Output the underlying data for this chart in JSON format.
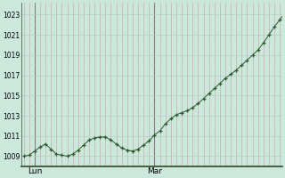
{
  "background_color": "#cce8dd",
  "line_color": "#2d5a2d",
  "marker_color": "#2d5a2d",
  "grid_color_major": "#b8ccc0",
  "grid_color_minor": "#d0ddd8",
  "grid_color_vert": "#c8a0a0",
  "yticks": [
    1009,
    1011,
    1013,
    1015,
    1017,
    1019,
    1021,
    1023
  ],
  "ylim": [
    1008.0,
    1024.2
  ],
  "xlim": [
    -0.5,
    47.5
  ],
  "xtick_labels": [
    "Lun",
    "Mar"
  ],
  "xtick_positions": [
    2,
    24
  ],
  "y_values": [
    1009.0,
    1009.1,
    1009.5,
    1009.9,
    1010.2,
    1009.7,
    1009.2,
    1009.1,
    1009.0,
    1009.2,
    1009.6,
    1010.1,
    1010.6,
    1010.8,
    1010.9,
    1010.9,
    1010.6,
    1010.2,
    1009.8,
    1009.6,
    1009.5,
    1009.7,
    1010.1,
    1010.5,
    1011.1,
    1011.5,
    1012.2,
    1012.7,
    1013.1,
    1013.3,
    1013.5,
    1013.8,
    1014.2,
    1014.7,
    1015.2,
    1015.7,
    1016.2,
    1016.7,
    1017.1,
    1017.5,
    1018.0,
    1018.5,
    1019.0,
    1019.5,
    1020.2,
    1021.0,
    1021.8,
    1022.5,
    1023.2
  ]
}
